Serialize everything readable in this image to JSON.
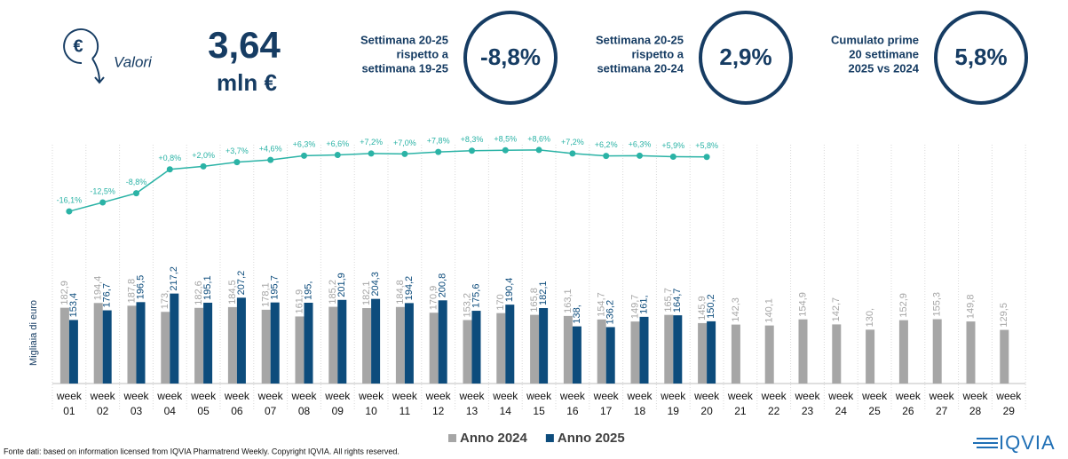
{
  "header": {
    "icon_symbol": "€",
    "label": "Valori",
    "value": "3,64",
    "unit": "mln €"
  },
  "kpis": [
    {
      "label_lines": [
        "Settimana 20-25",
        "rispetto a",
        "settimana 19-25"
      ],
      "value": "-8,8%"
    },
    {
      "label_lines": [
        "Settimana 20-25",
        "rispetto a",
        "settimana 20-24"
      ],
      "value": "2,9%"
    },
    {
      "label_lines": [
        "Cumulato prime",
        "20 settimane",
        "2025 vs 2024"
      ],
      "value": "5,8%"
    }
  ],
  "chart_data": {
    "type": "bar",
    "y_label": "Migliaia di euro",
    "categories": [
      "week 01",
      "week 02",
      "week 03",
      "week 04",
      "week 05",
      "week 06",
      "week 07",
      "week 08",
      "week 09",
      "week 10",
      "week 11",
      "week 12",
      "week 13",
      "week 14",
      "week 15",
      "week 16",
      "week 17",
      "week 18",
      "week 19",
      "week 20",
      "week 21",
      "week 22",
      "week 23",
      "week 24",
      "week 25",
      "week 26",
      "week 27",
      "week 28",
      "week 29"
    ],
    "ylim": [
      0,
      300
    ],
    "y2lim": [
      -20,
      10
    ],
    "series": [
      {
        "name": "Anno 2024",
        "color": "#a6a6a6",
        "values": [
          182.9,
          194.4,
          187.8,
          173,
          182.6,
          184.5,
          178.1,
          161.9,
          185.2,
          182.1,
          184.8,
          170.9,
          153.2,
          170,
          165.8,
          163.1,
          154.7,
          149.7,
          165.7,
          145.9,
          142.3,
          140.1,
          154.9,
          142.7,
          130,
          152.9,
          155.3,
          149.8,
          129.5
        ],
        "value_labels": [
          "182,9",
          "194,4",
          "187,8",
          "173,",
          "182,6",
          "184,5",
          "178,1",
          "161,9",
          "185,2",
          "182,1",
          "184,8",
          "170,9",
          "153,2",
          "170",
          "165,8",
          "163,1",
          "154,7",
          "149,7",
          "165,7",
          "145,9",
          "142,3",
          "140,1",
          "154,9",
          "142,7",
          "130,",
          "152,9",
          "155,3",
          "149,8",
          "129,5"
        ]
      },
      {
        "name": "Anno 2025",
        "color": "#0d4c7c",
        "values": [
          153.4,
          176.7,
          196.5,
          217.2,
          195.1,
          207.2,
          195.7,
          195,
          201.9,
          204.3,
          194.2,
          200.8,
          175.6,
          190.4,
          182.1,
          138,
          136.2,
          161,
          164.7,
          150.2,
          null,
          null,
          null,
          null,
          null,
          null,
          null,
          null,
          null
        ],
        "value_labels": [
          "153,4",
          "176,7",
          "196,5",
          "217,2",
          "195,1",
          "207,2",
          "195,7",
          "195,",
          "201,9",
          "204,3",
          "194,2",
          "200,8",
          "175,6",
          "190,4",
          "182,1",
          "138,",
          "136,2",
          "161,",
          "164,7",
          "150,2",
          null,
          null,
          null,
          null,
          null,
          null,
          null,
          null,
          null
        ]
      },
      {
        "axis": "y2",
        "color": "#2bb3a6",
        "values": [
          -16.1,
          -12.5,
          -8.8,
          0.8,
          2.0,
          3.7,
          4.6,
          6.3,
          6.6,
          7.2,
          7.0,
          7.8,
          8.3,
          8.5,
          8.6,
          7.2,
          6.2,
          6.3,
          5.9,
          5.8,
          null,
          null,
          null,
          null,
          null,
          null,
          null,
          null,
          null
        ],
        "value_labels": [
          "-16,1%",
          "-12,5%",
          "-8,8%",
          "+0,8%",
          "+2,0%",
          "+3,7%",
          "+4,6%",
          "+6,3%",
          "+6,6%",
          "+7,2%",
          "+7,0%",
          "+7,8%",
          "+8,3%",
          "+8,5%",
          "+8,6%",
          "+7,2%",
          "+6,2%",
          "+6,3%",
          "+5,9%",
          "+5,8%",
          null,
          null,
          null,
          null,
          null,
          null,
          null,
          null,
          null
        ]
      }
    ]
  },
  "footnote": "Fonte dati: based on information licensed from IQVIA Pharmatrend Weekly. Copyright IQVIA. All rights reserved.",
  "logo": "IQVIA"
}
